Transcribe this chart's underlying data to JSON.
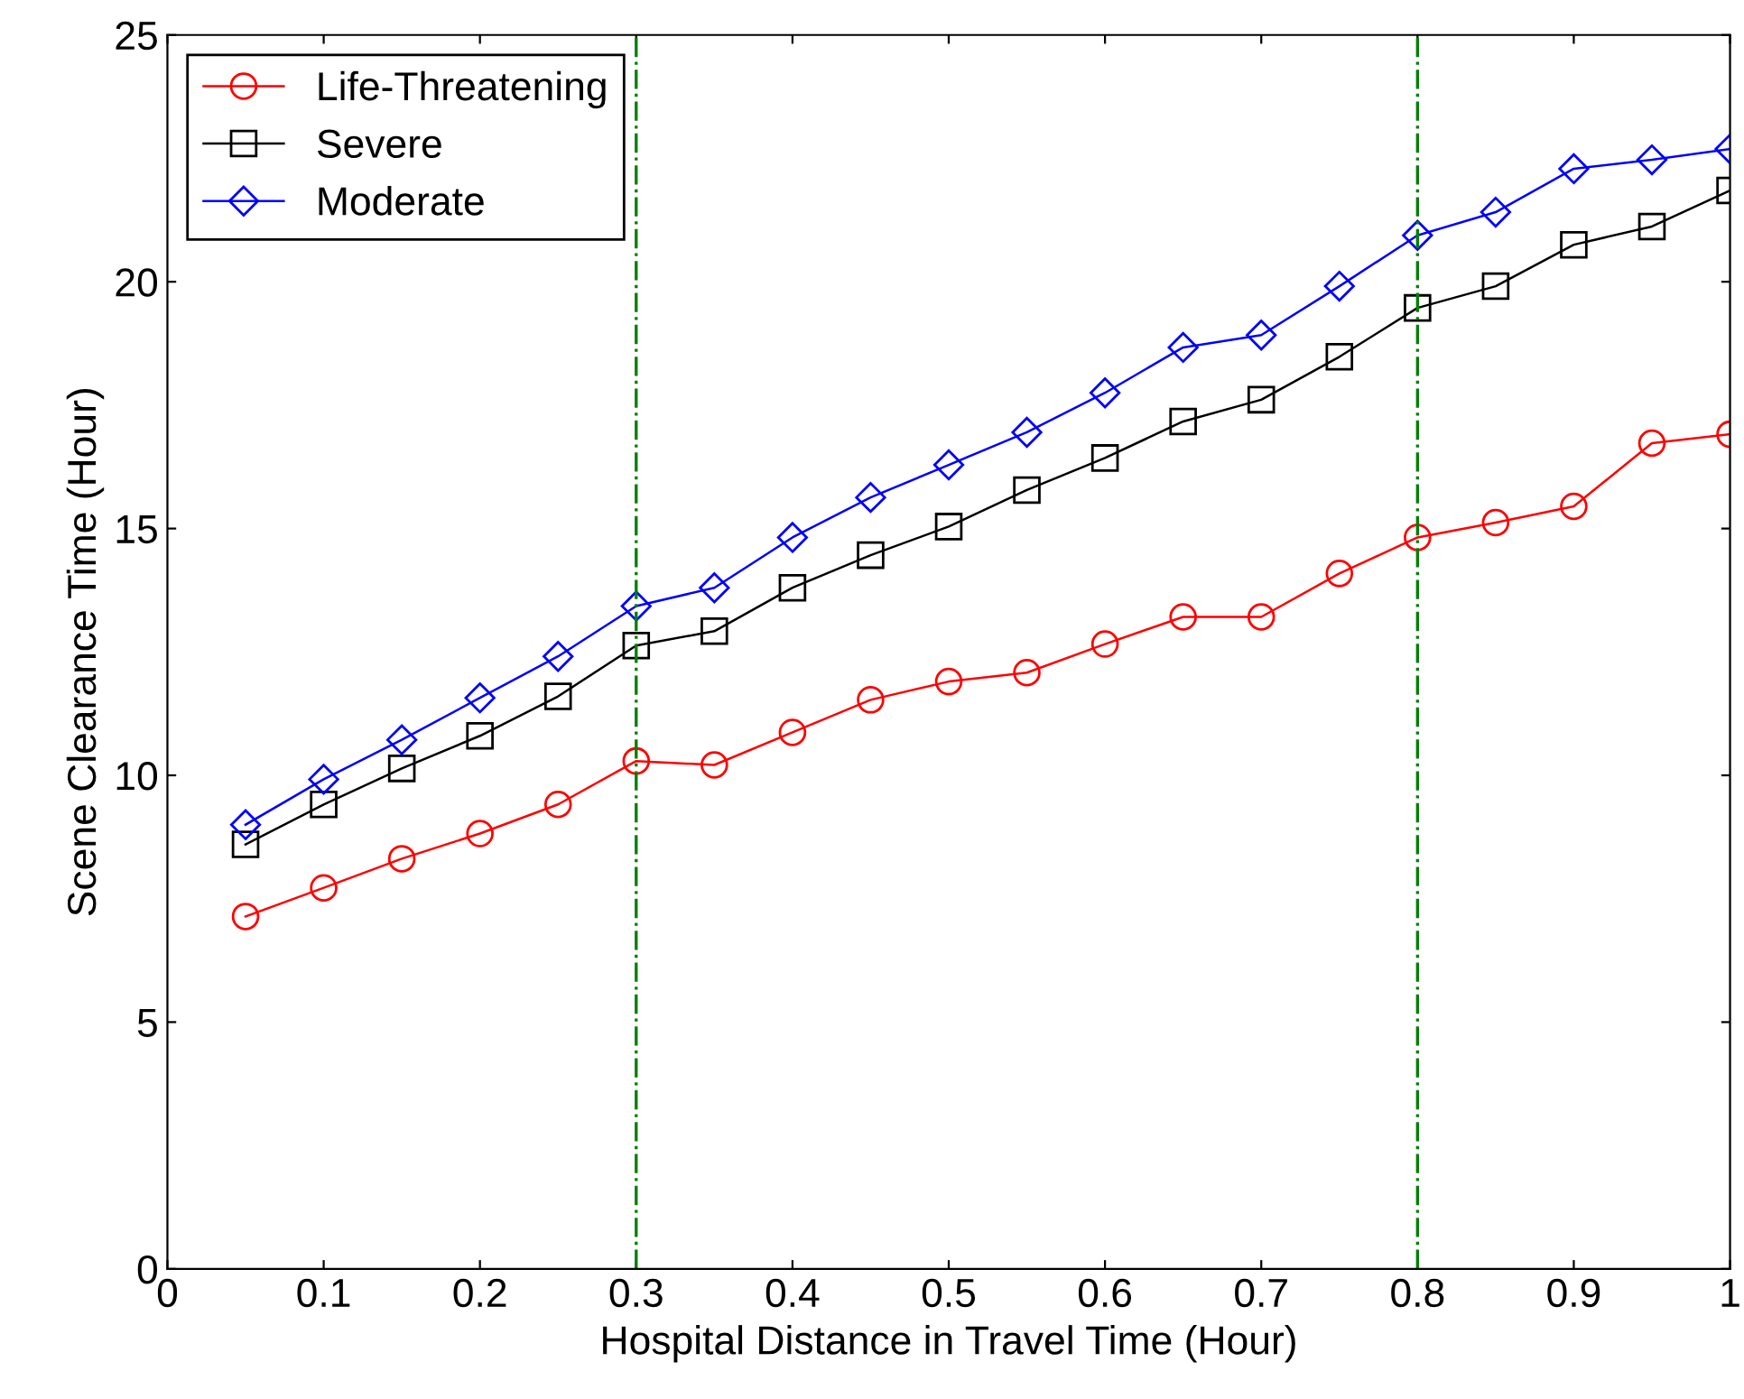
{
  "chart_data": {
    "type": "line",
    "xlabel": "Hospital Distance in Travel Time (Hour)",
    "ylabel": "Scene Clearance Time (Hour)",
    "x": [
      0.05,
      0.1,
      0.15,
      0.2,
      0.25,
      0.3,
      0.35,
      0.4,
      0.45,
      0.5,
      0.55,
      0.6,
      0.65,
      0.7,
      0.75,
      0.8,
      0.85,
      0.9,
      0.95,
      1.0
    ],
    "series": [
      {
        "name": "Life-Threatening",
        "color": "#ff0000",
        "marker": "circle",
        "values": [
          7.14,
          7.72,
          8.31,
          8.82,
          9.41,
          10.29,
          10.21,
          10.87,
          11.53,
          11.9,
          12.08,
          12.66,
          13.21,
          13.21,
          14.09,
          14.82,
          15.12,
          15.45,
          16.73,
          16.91
        ]
      },
      {
        "name": "Severe",
        "color": "#000000",
        "marker": "square",
        "values": [
          8.6,
          9.41,
          10.14,
          10.8,
          11.6,
          12.63,
          12.92,
          13.8,
          14.46,
          15.04,
          15.78,
          16.43,
          17.17,
          17.61,
          18.48,
          19.47,
          19.91,
          20.75,
          21.12,
          21.85
        ]
      },
      {
        "name": "Moderate",
        "color": "#0000ff",
        "marker": "diamond",
        "values": [
          9.0,
          9.92,
          10.72,
          11.57,
          12.41,
          13.43,
          13.8,
          14.82,
          15.63,
          16.29,
          16.95,
          17.75,
          18.67,
          18.92,
          19.91,
          20.94,
          21.41,
          22.29,
          22.47,
          22.69
        ]
      }
    ],
    "xlim": [
      0,
      1
    ],
    "xticks": [
      0,
      0.1,
      0.2,
      0.3,
      0.4,
      0.5,
      0.6,
      0.7,
      0.8,
      0.9,
      1
    ],
    "ylim": [
      0,
      25
    ],
    "yticks": [
      0,
      5,
      10,
      15,
      20,
      25
    ],
    "ref_lines": [
      {
        "axis": "x",
        "value": 0.3,
        "color": "#008000",
        "line_style": "dashdot"
      },
      {
        "axis": "x",
        "value": 0.8,
        "color": "#008000",
        "line_style": "dashdot"
      }
    ],
    "legend": "top left",
    "grid": false
  }
}
